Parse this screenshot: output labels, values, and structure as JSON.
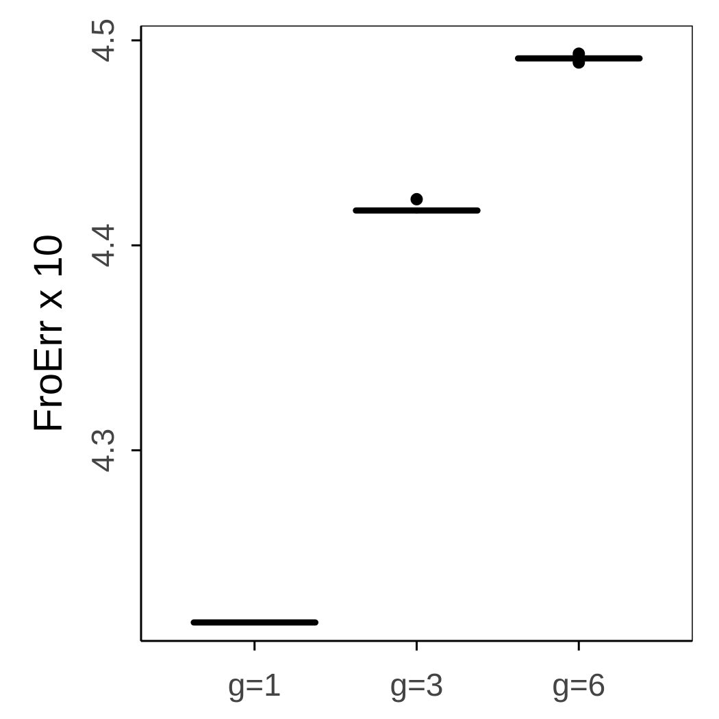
{
  "chart_data": {
    "type": "boxplot",
    "title": "",
    "xlabel": "",
    "ylabel": "FroErr x 10",
    "categories": [
      "g=1",
      "g=3",
      "g=6"
    ],
    "ylim": [
      4.207,
      4.507
    ],
    "yticks": [
      4.3,
      4.4,
      4.5
    ],
    "ytick_labels": [
      "4.3",
      "4.4",
      "4.5"
    ],
    "grid": false,
    "legend": "none",
    "boxes": [
      {
        "category": "g=1",
        "q1": 4.2155,
        "median": 4.216,
        "q3": 4.2165,
        "whisker_low": 4.2155,
        "whisker_high": 4.2165,
        "outliers": []
      },
      {
        "category": "g=3",
        "q1": 4.4165,
        "median": 4.417,
        "q3": 4.4175,
        "whisker_low": 4.4155,
        "whisker_high": 4.418,
        "outliers": [
          4.4225
        ]
      },
      {
        "category": "g=6",
        "q1": 4.4908,
        "median": 4.4912,
        "q3": 4.4915,
        "whisker_low": 4.4905,
        "whisker_high": 4.4918,
        "outliers": [
          4.4892,
          4.49,
          4.4935
        ]
      }
    ],
    "color": "#000000"
  }
}
